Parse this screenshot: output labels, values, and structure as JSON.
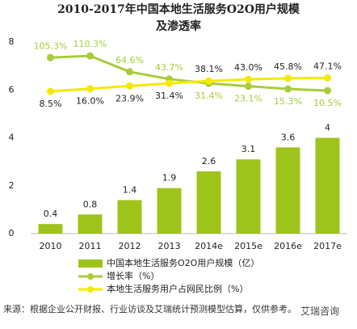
{
  "chart_data": {
    "type": "bar-line",
    "title_lines": [
      "2010-2017年中国本地生活服务O2O用户规模",
      "及渗透率"
    ],
    "categories": [
      "2010",
      "2011",
      "2012",
      "2013",
      "2014e",
      "2015e",
      "2016e",
      "2017e"
    ],
    "ylim": [
      0,
      8
    ],
    "yticks": [
      0,
      2,
      4,
      6,
      8
    ],
    "y2lim": [
      -400,
      150
    ],
    "series": [
      {
        "name": "中国本地生活服务O2O用户规模（亿）",
        "type": "bar",
        "color": "#9ec41c",
        "values": [
          0.4,
          0.8,
          1.4,
          1.9,
          2.6,
          3.1,
          3.6,
          4.0
        ]
      },
      {
        "name": "增长率（%）",
        "type": "line",
        "axis": "y2",
        "color": "#a8cc3a",
        "values": [
          105.3,
          110.3,
          64.6,
          43.7,
          31.4,
          23.1,
          15.3,
          10.5
        ],
        "value_labels": [
          "105.3%",
          "110.3%",
          "64.6%",
          "43.7%",
          "31.4%",
          "23.1%",
          "15.3%",
          "10.5%"
        ]
      },
      {
        "name": "本地生活服务用户占网民比例（%）",
        "type": "line",
        "axis": "y2",
        "color": "#f4ea00",
        "values": [
          8.5,
          16.0,
          23.9,
          31.4,
          38.1,
          43.0,
          45.8,
          47.1
        ],
        "value_labels": [
          "8.5%",
          "16.0%",
          "23.9%",
          "31.4%",
          "38.1%",
          "43.0%",
          "45.8%",
          "47.1%"
        ]
      }
    ],
    "source": "来源：根据企业公开财报、行业访谈及艾瑞统计预测模型估算，仅供参考。",
    "watermark": "艾瑞咨询"
  }
}
